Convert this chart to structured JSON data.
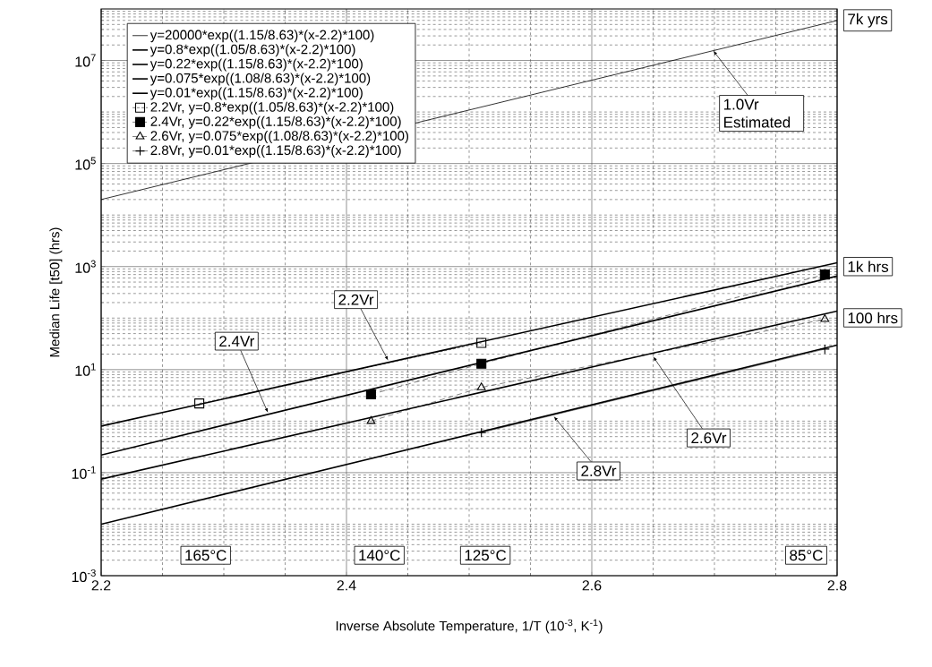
{
  "chart_data": {
    "type": "line",
    "xlabel": "Inverse Absolute Temperature, 1/T (10$^{-3}$, K$^{-1}$)",
    "ylabel": "Median Life [t50] (hrs)",
    "xlim": [
      2.2,
      2.8
    ],
    "xticks": [
      2.2,
      2.4,
      2.6,
      2.8
    ],
    "ylim": [
      0.001,
      100000000
    ],
    "log": "y",
    "yticks": [
      {
        "value": 0.001,
        "label": "10$^{-3}$"
      },
      {
        "value": 0.1,
        "label": "10$^{-1}$"
      },
      {
        "value": 10,
        "label": "10$^{1}$"
      },
      {
        "value": 1000,
        "label": "10$^{3}$"
      },
      {
        "value": 100000,
        "label": "10$^{5}$"
      },
      {
        "value": 10000000,
        "label": "10$^{7}$"
      }
    ],
    "grid": true,
    "legend": "top left",
    "series": [
      {
        "name": "y=20000*exp((1.15/8.63)*(x-2.2)*100)",
        "type": "line",
        "color": "#000000",
        "marker": "none",
        "line_style": "solid",
        "x": [
          2.2,
          2.8
        ],
        "values": [
          20000,
          59600000
        ]
      },
      {
        "name": "y=0.8*exp((1.05/8.63)*(x-2.2)*100)",
        "type": "line",
        "color": "#000000",
        "marker": "none",
        "line_style": "solid",
        "x": [
          2.2,
          2.8
        ],
        "values": [
          0.8,
          1184
        ]
      },
      {
        "name": "y=0.22*exp((1.15/8.63)*(x-2.2)*100)",
        "type": "line",
        "color": "#000000",
        "marker": "none",
        "line_style": "solid",
        "x": [
          2.2,
          2.8
        ],
        "values": [
          0.22,
          655
        ]
      },
      {
        "name": "y=0.075*exp((1.08/8.63)*(x-2.2)*100)",
        "type": "line",
        "color": "#000000",
        "marker": "none",
        "line_style": "solid",
        "x": [
          2.2,
          2.8
        ],
        "values": [
          0.075,
          137
        ]
      },
      {
        "name": "y=0.01*exp((1.15/8.63)*(x-2.2)*100)",
        "type": "line",
        "color": "#000000",
        "marker": "none",
        "line_style": "solid",
        "x": [
          2.2,
          2.8
        ],
        "values": [
          0.01,
          29.8
        ]
      },
      {
        "name": "2.2Vr, y=0.8*exp((1.05/8.63)*(x-2.2)*100)",
        "type": "line",
        "color": "#000000",
        "marker": "square",
        "line_style": "dotted",
        "x": [
          2.28,
          2.51
        ],
        "values": [
          2.2,
          33
        ]
      },
      {
        "name": "2.4Vr, y=0.22*exp((1.15/8.63)*(x-2.2)*100)",
        "type": "line",
        "color": "#000000",
        "marker": "square",
        "line_style": "dashed",
        "x": [
          2.42,
          2.51,
          2.79
        ],
        "values": [
          3.3,
          13,
          700
        ]
      },
      {
        "name": "2.6Vr, y=0.075*exp((1.08/8.63)*(x-2.2)*100)",
        "type": "line",
        "color": "#000000",
        "marker": "triangle",
        "line_style": "dashed",
        "x": [
          2.42,
          2.51,
          2.79
        ],
        "values": [
          1.0,
          4.5,
          95
        ]
      },
      {
        "name": "2.8Vr, y=0.01*exp((1.15/8.63)*(x-2.2)*100)",
        "type": "line",
        "color": "#000000",
        "marker": "cross",
        "line_style": "solid",
        "x": [
          2.51,
          2.79
        ],
        "values": [
          0.6,
          25
        ]
      }
    ],
    "annotations": [
      {
        "text": "2.2Vr",
        "x": 2.434,
        "y": 15
      },
      {
        "text": "2.4Vr",
        "x": 2.336,
        "y": 1.45
      },
      {
        "text": "2.6Vr",
        "x": 2.65,
        "y": 18
      },
      {
        "text": "2.8Vr",
        "x": 2.569,
        "y": 1.24
      },
      {
        "text": "1.0Vr\nEstimated",
        "x": 2.699,
        "y": 15500000
      },
      {
        "text": "7k yrs",
        "x": 2.8,
        "y": 60000000
      },
      {
        "text": "1k hrs",
        "x": 2.8,
        "y": 1000
      },
      "100 hrs",
      "165°C",
      "140°C",
      "125°C",
      "85°C"
    ]
  }
}
